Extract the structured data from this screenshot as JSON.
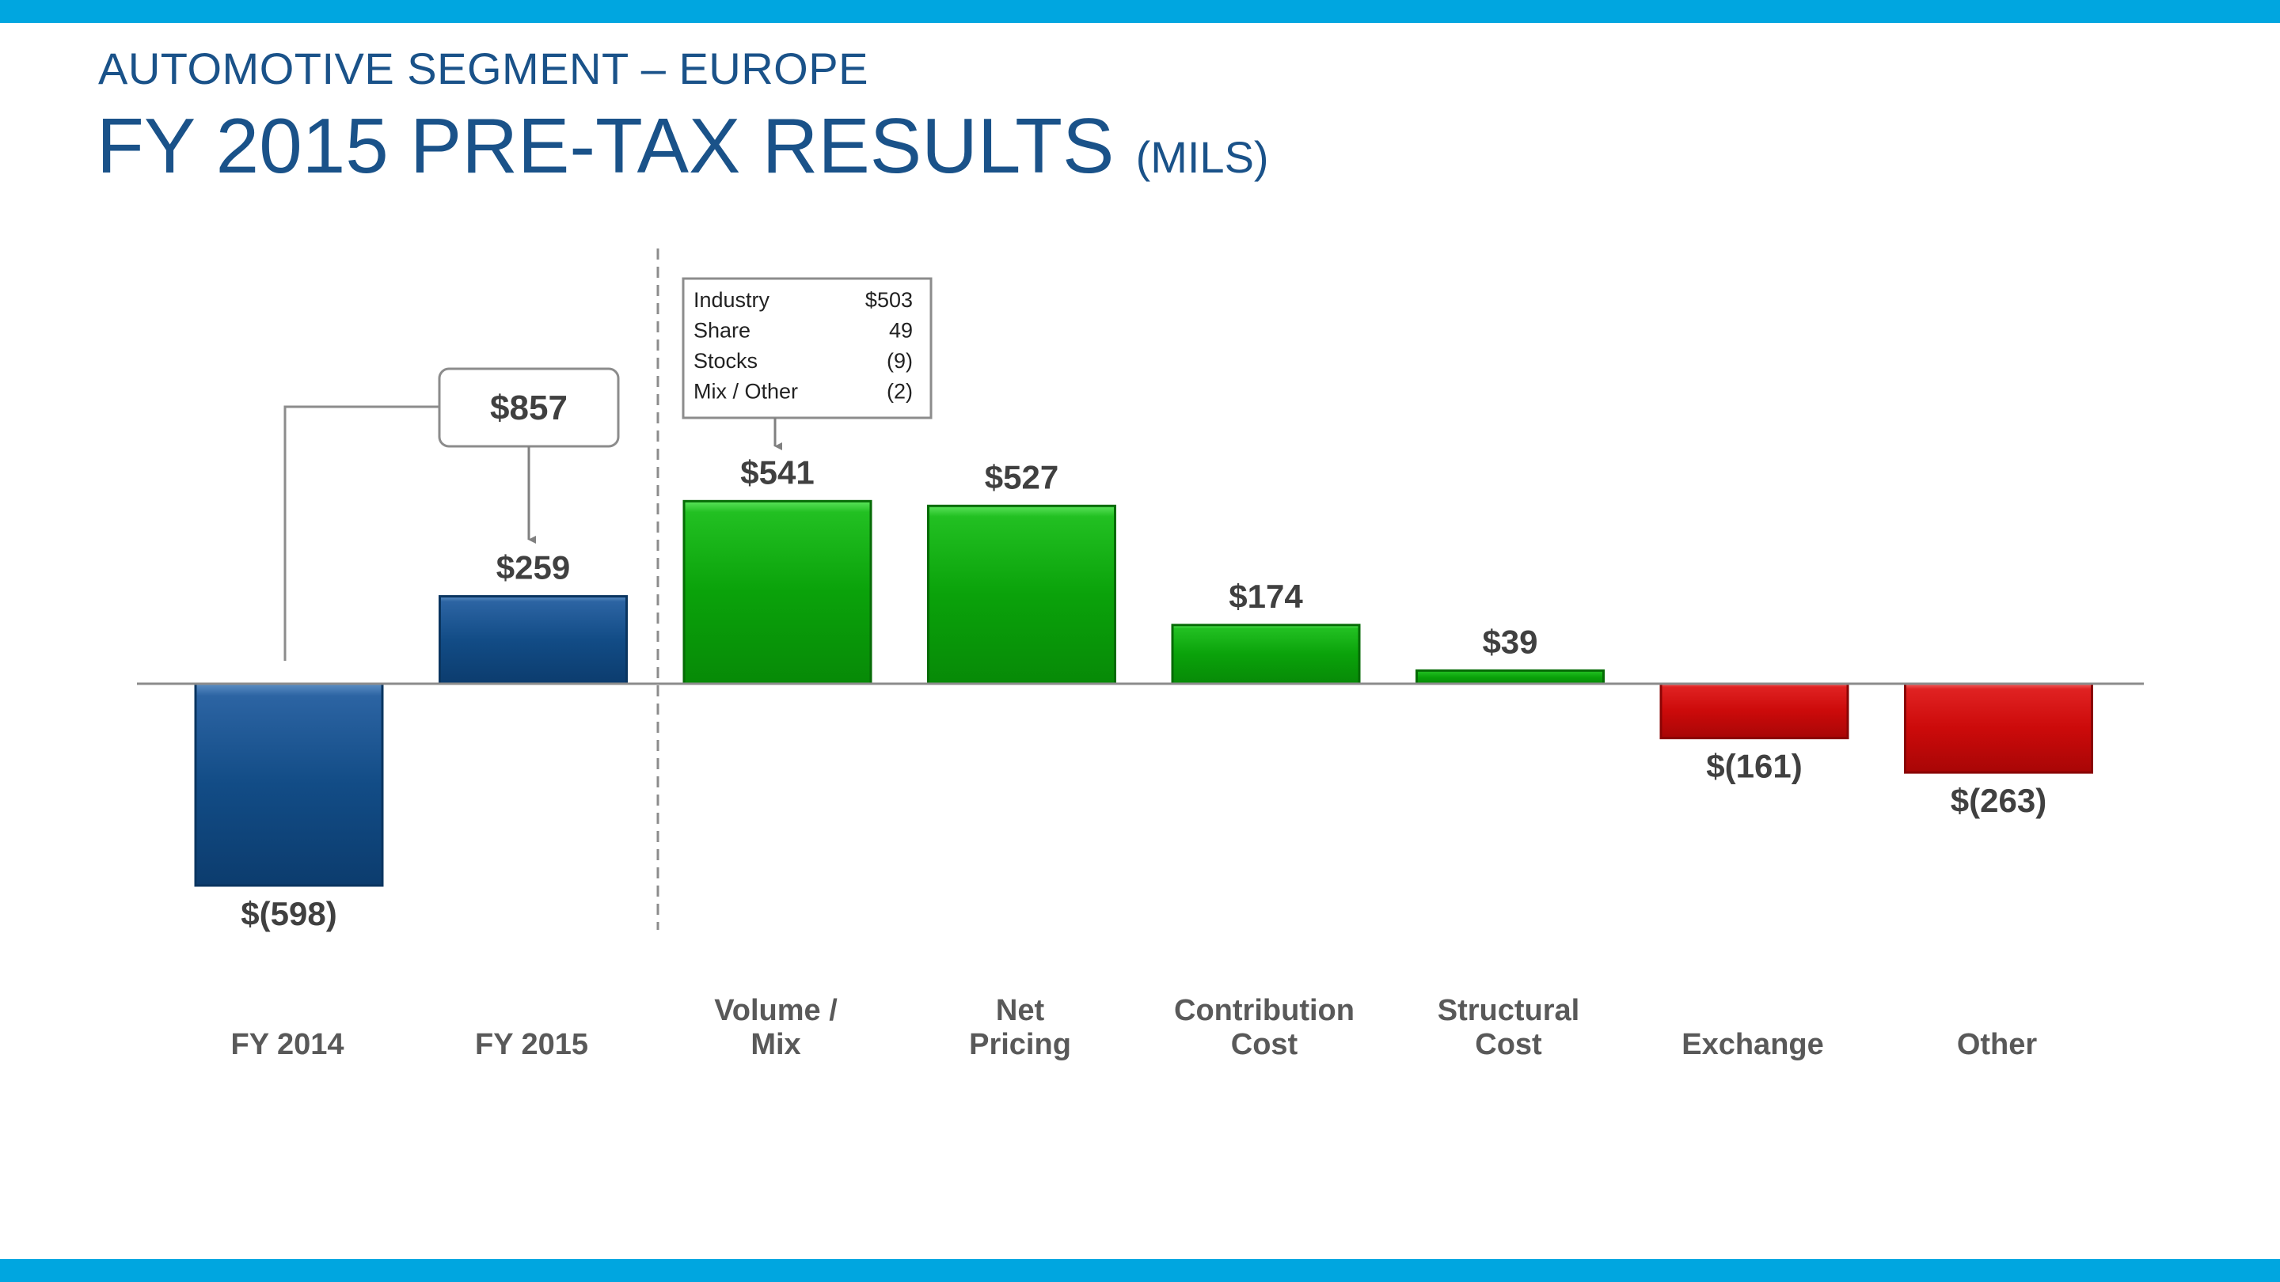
{
  "header": {
    "subtitle": "AUTOMOTIVE SEGMENT – EUROPE",
    "title": "FY 2015 PRE-TAX RESULTS",
    "unit": "(MILS)"
  },
  "colors": {
    "band": "#00a6e0",
    "title": "#1a5289",
    "total_bar": "#0f4a80",
    "positive_bar": "#0a9e0a",
    "negative_bar": "#cc0a0a"
  },
  "chart_data": {
    "type": "bar",
    "subtype": "waterfall-style",
    "title": "FY 2015 PRE-TAX RESULTS (MILS)",
    "categories": [
      [
        "FY 2014"
      ],
      [
        "FY 2015"
      ],
      [
        "Volume /",
        "Mix"
      ],
      [
        "Net",
        "Pricing"
      ],
      [
        "Contribution",
        "Cost"
      ],
      [
        "Structural",
        "Cost"
      ],
      [
        "Exchange"
      ],
      [
        "Other"
      ]
    ],
    "values": [
      -598,
      259,
      541,
      527,
      174,
      39,
      -161,
      -263
    ],
    "labels": [
      "$(598)",
      "$259",
      "$541",
      "$527",
      "$174",
      "$39",
      "$(161)",
      "$(263)"
    ],
    "bar_kinds": [
      "total",
      "total",
      "positive",
      "positive",
      "positive",
      "positive",
      "negative",
      "negative"
    ],
    "ylim": [
      -700,
      1300
    ],
    "xlabel": "",
    "ylabel": "",
    "grid": false,
    "improvement_callout": {
      "label": "$857",
      "from": "FY 2014",
      "to": "FY 2015"
    },
    "volume_mix_detail": {
      "rows": [
        {
          "name": "Industry",
          "value": "$503"
        },
        {
          "name": "Share",
          "value": "49"
        },
        {
          "name": "Stocks",
          "value": "(9)"
        },
        {
          "name": "Mix / Other",
          "value": "(2)"
        }
      ]
    }
  }
}
